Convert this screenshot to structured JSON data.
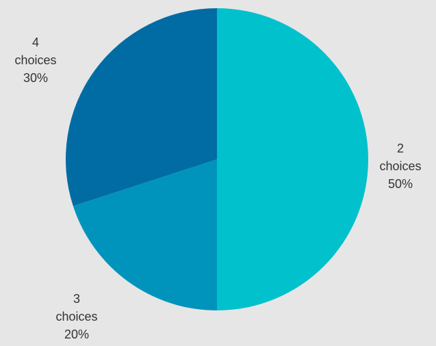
{
  "chart_data": {
    "type": "pie",
    "categories": [
      "2 choices",
      "3 choices",
      "4 choices"
    ],
    "values": [
      50,
      20,
      30
    ],
    "colors": [
      "#00c1cc",
      "#0094bd",
      "#006ca3"
    ],
    "labels": [
      {
        "lines": [
          "2",
          "choices",
          "50%"
        ]
      },
      {
        "lines": [
          "3",
          "choices",
          "20%"
        ]
      },
      {
        "lines": [
          "4",
          "choices",
          "30%"
        ]
      }
    ],
    "start_angle_deg": 0,
    "direction": "clockwise",
    "legend": "none"
  }
}
